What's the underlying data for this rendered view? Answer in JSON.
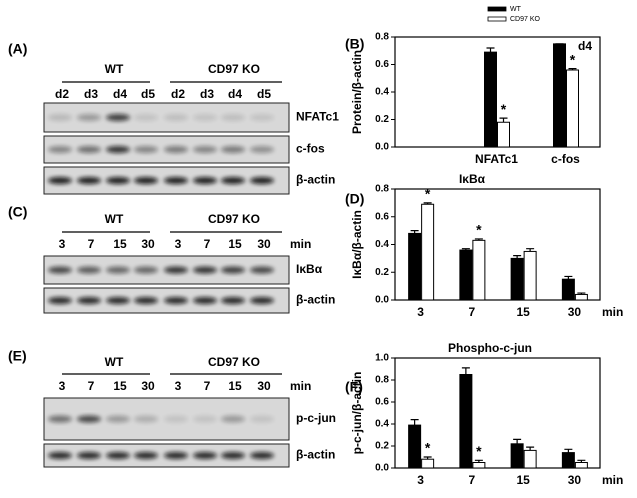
{
  "blots": [
    {
      "label": "(A)",
      "groups": [
        "WT",
        "CD97 KO"
      ],
      "lanes": [
        "d2",
        "d3",
        "d4",
        "d5",
        "d2",
        "d3",
        "d4",
        "d5"
      ],
      "rows": [
        "NFATc1",
        "c-fos",
        "β-actin"
      ]
    },
    {
      "label": "(C)",
      "groups": [
        "WT",
        "CD97 KO"
      ],
      "lanes": [
        "3",
        "7",
        "15",
        "30",
        "3",
        "7",
        "15",
        "30"
      ],
      "unit": "min",
      "rows": [
        "IκBα",
        "β-actin"
      ]
    },
    {
      "label": "(E)",
      "groups": [
        "WT",
        "CD97 KO"
      ],
      "lanes": [
        "3",
        "7",
        "15",
        "30",
        "3",
        "7",
        "15",
        "30"
      ],
      "unit": "min",
      "rows": [
        "p-c-jun",
        "β-actin"
      ]
    }
  ],
  "chart_data": [
    {
      "type": "bar",
      "label": "(B)",
      "ylabel": "Protein/β-actin",
      "annotation": "d4",
      "categories": [
        "NFATc1",
        "c-fos"
      ],
      "series": [
        {
          "name": "WT",
          "color": "#000000",
          "values": [
            0.69,
            0.75
          ],
          "errors": [
            0.03,
            0.0
          ]
        },
        {
          "name": "CD97 KO",
          "color": "#ffffff",
          "values": [
            0.18,
            0.56
          ],
          "errors": [
            0.03,
            0.01
          ],
          "marks": [
            "*",
            "*"
          ]
        }
      ],
      "ylim": [
        0,
        0.8
      ],
      "yticks": [
        {
          "value": 0,
          "label": "0.0"
        },
        0.2,
        0.4,
        0.6,
        0.8
      ],
      "legend": "top-right"
    },
    {
      "type": "bar",
      "label": "(D)",
      "title": "IκBα",
      "ylabel": "IκBα/β-actin",
      "xunit": "min",
      "categories": [
        "3",
        "7",
        "15",
        "30"
      ],
      "series": [
        {
          "name": "WT",
          "color": "#000000",
          "values": [
            0.48,
            0.36,
            0.3,
            0.15
          ],
          "errors": [
            0.02,
            0.01,
            0.02,
            0.02
          ]
        },
        {
          "name": "CD97 KO",
          "color": "#ffffff",
          "values": [
            0.69,
            0.43,
            0.35,
            0.04
          ],
          "errors": [
            0.01,
            0.01,
            0.02,
            0.01
          ],
          "marks": [
            "*",
            "*",
            null,
            null
          ]
        }
      ],
      "ylim": [
        0,
        0.8
      ],
      "yticks": [
        {
          "value": 0,
          "label": "0.0"
        },
        0.2,
        0.4,
        0.6,
        0.8
      ]
    },
    {
      "type": "bar",
      "label": "(F)",
      "title": "Phospho-c-jun",
      "ylabel": "p-c-jun/β-actin",
      "xunit": "min",
      "categories": [
        "3",
        "7",
        "15",
        "30"
      ],
      "series": [
        {
          "name": "WT",
          "color": "#000000",
          "values": [
            0.39,
            0.85,
            0.22,
            0.14
          ],
          "errors": [
            0.05,
            0.06,
            0.04,
            0.03
          ]
        },
        {
          "name": "CD97 KO",
          "color": "#ffffff",
          "values": [
            0.08,
            0.05,
            0.16,
            0.05
          ],
          "errors": [
            0.02,
            0.02,
            0.03,
            0.02
          ],
          "marks": [
            "*",
            "*",
            null,
            null
          ]
        }
      ],
      "ylim": [
        0,
        1.0
      ],
      "yticks": [
        {
          "value": 0,
          "label": "0.0"
        },
        0.2,
        0.4,
        0.6,
        0.8,
        {
          "value": 1.0,
          "label": "1.0"
        }
      ]
    }
  ]
}
